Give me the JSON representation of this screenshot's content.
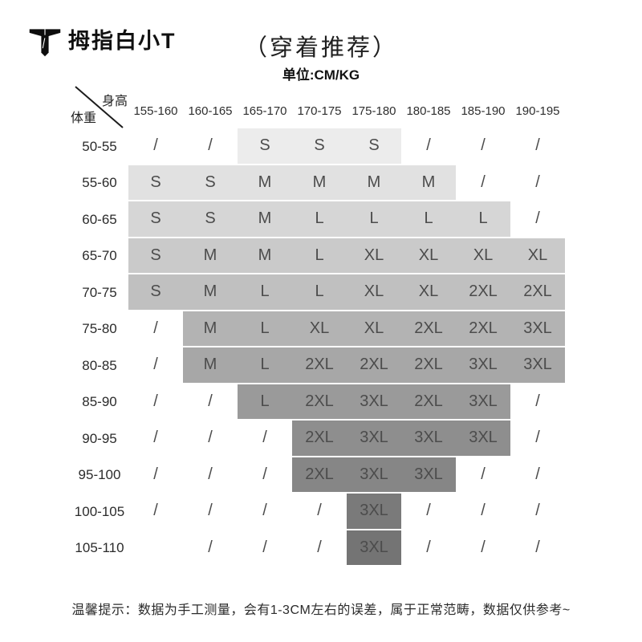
{
  "brand": {
    "name": "拇指白小T"
  },
  "chart_data": {
    "type": "table",
    "title": "（穿着推荐）",
    "unit": "单位:CM/KG",
    "x_axis_label": "身高",
    "y_axis_label": "体重",
    "columns": [
      "155-160",
      "160-165",
      "165-170",
      "170-175",
      "175-180",
      "180-185",
      "185-190",
      "190-195"
    ],
    "rows": [
      {
        "label": "50-55",
        "values": [
          "/",
          "/",
          "S",
          "S",
          "S",
          "/",
          "/",
          "/"
        ]
      },
      {
        "label": "55-60",
        "values": [
          "S",
          "S",
          "M",
          "M",
          "M",
          "M",
          "/",
          "/"
        ]
      },
      {
        "label": "60-65",
        "values": [
          "S",
          "S",
          "M",
          "L",
          "L",
          "L",
          "L",
          "/"
        ]
      },
      {
        "label": "65-70",
        "values": [
          "S",
          "M",
          "M",
          "L",
          "XL",
          "XL",
          "XL",
          "XL"
        ]
      },
      {
        "label": "70-75",
        "values": [
          "S",
          "M",
          "L",
          "L",
          "XL",
          "XL",
          "2XL",
          "2XL"
        ]
      },
      {
        "label": "75-80",
        "values": [
          "/",
          "M",
          "L",
          "XL",
          "XL",
          "2XL",
          "2XL",
          "3XL"
        ]
      },
      {
        "label": "80-85",
        "values": [
          "/",
          "M",
          "L",
          "2XL",
          "2XL",
          "2XL",
          "3XL",
          "3XL"
        ]
      },
      {
        "label": "85-90",
        "values": [
          "/",
          "/",
          "L",
          "2XL",
          "3XL",
          "2XL",
          "3XL",
          "/"
        ]
      },
      {
        "label": "90-95",
        "values": [
          "/",
          "/",
          "/",
          "2XL",
          "3XL",
          "3XL",
          "3XL",
          "/"
        ]
      },
      {
        "label": "95-100",
        "values": [
          "/",
          "/",
          "/",
          "2XL",
          "3XL",
          "3XL",
          "/",
          "/"
        ]
      },
      {
        "label": "100-105",
        "values": [
          "/",
          "/",
          "/",
          "/",
          "3XL",
          "/",
          "/",
          "/"
        ]
      },
      {
        "label": "105-110",
        "values": [
          "",
          "/",
          "/",
          "/",
          "3XL",
          "/",
          "/",
          "/"
        ]
      }
    ]
  },
  "presentation": {
    "row_shades": [
      {
        "start": 3,
        "end": 5,
        "color": "#ececec"
      },
      {
        "start": 1,
        "end": 6,
        "color": "#e1e1e1"
      },
      {
        "start": 1,
        "end": 7,
        "color": "#d6d6d6"
      },
      {
        "start": 1,
        "end": 8,
        "color": "#cacaca"
      },
      {
        "start": 1,
        "end": 8,
        "color": "#c0c0c0"
      },
      {
        "start": 2,
        "end": 8,
        "color": "#b3b3b3"
      },
      {
        "start": 2,
        "end": 8,
        "color": "#a7a7a7"
      },
      {
        "start": 3,
        "end": 7,
        "color": "#9a9a9a"
      },
      {
        "start": 4,
        "end": 7,
        "color": "#8e8e8e"
      },
      {
        "start": 4,
        "end": 6,
        "color": "#868686"
      },
      {
        "start": 5,
        "end": 5,
        "color": "#7a7a7a"
      },
      {
        "start": 5,
        "end": 5,
        "color": "#747474"
      }
    ],
    "cell_text_color": "#4c4c4c",
    "line_color": "#1c1c1c"
  },
  "footer": {
    "note": "温馨提示：数据为手工测量，会有1-3CM左右的误差，属于正常范畴，数据仅供参考~"
  }
}
